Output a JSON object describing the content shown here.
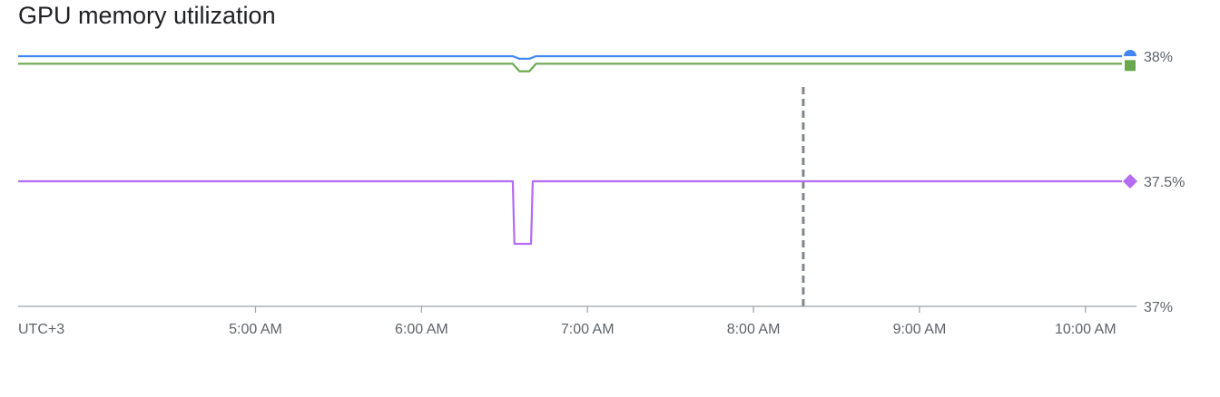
{
  "title": "GPU memory utilization",
  "chart_data": {
    "type": "line",
    "title": "GPU memory utilization",
    "xlabel": "",
    "ylabel": "",
    "timezone_label": "UTC+3",
    "x_tick_labels": [
      "5:00 AM",
      "6:00 AM",
      "7:00 AM",
      "8:00 AM",
      "9:00 AM",
      "10:00 AM"
    ],
    "x_ticks_hours": [
      5,
      6,
      7,
      8,
      9,
      10
    ],
    "xlim_hours": [
      3.57,
      10.22
    ],
    "y_tick_labels": [
      "37%",
      "37.5%",
      "38%"
    ],
    "y_ticks": [
      37,
      37.5,
      38
    ],
    "ylim": [
      37,
      38
    ],
    "grid": false,
    "marker_line_hour": 8.3,
    "series": [
      {
        "color": "#4285f4",
        "marker": "half-circle",
        "x": [
          3.57,
          6.55,
          6.59,
          6.65,
          6.69,
          10.22
        ],
        "y": [
          38.0,
          38.0,
          37.99,
          37.99,
          38.0,
          38.0
        ]
      },
      {
        "color": "#6aa84f",
        "marker": "square",
        "x": [
          3.57,
          6.55,
          6.59,
          6.65,
          6.69,
          10.22
        ],
        "y": [
          37.97,
          37.97,
          37.94,
          37.94,
          37.97,
          37.97
        ]
      },
      {
        "color": "#b36cf2",
        "marker": "diamond",
        "x": [
          3.57,
          6.55,
          6.56,
          6.66,
          6.67,
          10.22
        ],
        "y": [
          37.5,
          37.5,
          37.25,
          37.25,
          37.5,
          37.5
        ]
      }
    ]
  }
}
